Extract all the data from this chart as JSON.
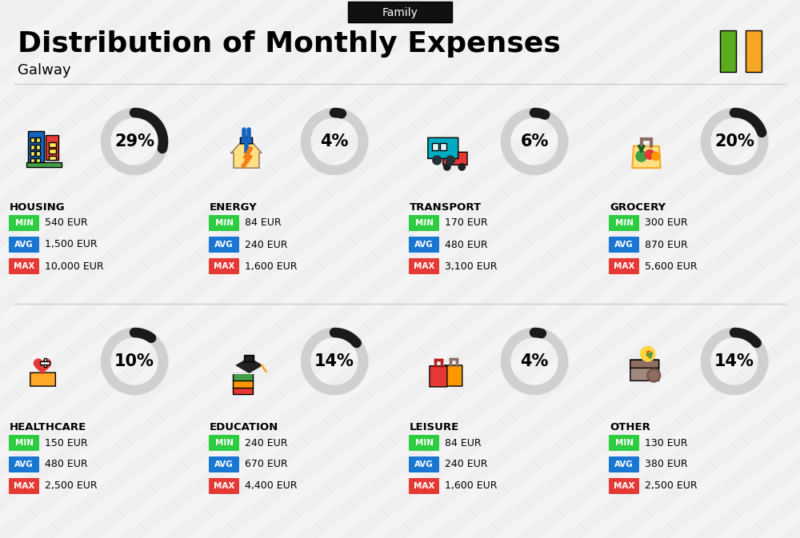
{
  "title": "Distribution of Monthly Expenses",
  "subtitle": "Galway",
  "tag": "Family",
  "bg_color": "#efefef",
  "flag_green": "#5aab1e",
  "flag_orange": "#f5a623",
  "categories": [
    {
      "name": "HOUSING",
      "pct": 29,
      "min": "540 EUR",
      "avg": "1,500 EUR",
      "max": "10,000 EUR",
      "row": 0,
      "col": 0
    },
    {
      "name": "ENERGY",
      "pct": 4,
      "min": "84 EUR",
      "avg": "240 EUR",
      "max": "1,600 EUR",
      "row": 0,
      "col": 1
    },
    {
      "name": "TRANSPORT",
      "pct": 6,
      "min": "170 EUR",
      "avg": "480 EUR",
      "max": "3,100 EUR",
      "row": 0,
      "col": 2
    },
    {
      "name": "GROCERY",
      "pct": 20,
      "min": "300 EUR",
      "avg": "870 EUR",
      "max": "5,600 EUR",
      "row": 0,
      "col": 3
    },
    {
      "name": "HEALTHCARE",
      "pct": 10,
      "min": "150 EUR",
      "avg": "480 EUR",
      "max": "2,500 EUR",
      "row": 1,
      "col": 0
    },
    {
      "name": "EDUCATION",
      "pct": 14,
      "min": "240 EUR",
      "avg": "670 EUR",
      "max": "4,400 EUR",
      "row": 1,
      "col": 1
    },
    {
      "name": "LEISURE",
      "pct": 4,
      "min": "84 EUR",
      "avg": "240 EUR",
      "max": "1,600 EUR",
      "row": 1,
      "col": 2
    },
    {
      "name": "OTHER",
      "pct": 14,
      "min": "130 EUR",
      "avg": "380 EUR",
      "max": "2,500 EUR",
      "row": 1,
      "col": 3
    }
  ],
  "min_color": "#2ecc40",
  "avg_color": "#1976d2",
  "max_color": "#e53935",
  "circle_bg": "#d0d0d0",
  "circle_arc": "#1a1a1a",
  "stripe_color": "#ffffff",
  "stripe_alpha": 0.32,
  "stripe_lw": 12,
  "pct_fontsize": 15,
  "name_fontsize": 9.5,
  "val_fontsize": 9,
  "badge_fontsize": 7.5
}
